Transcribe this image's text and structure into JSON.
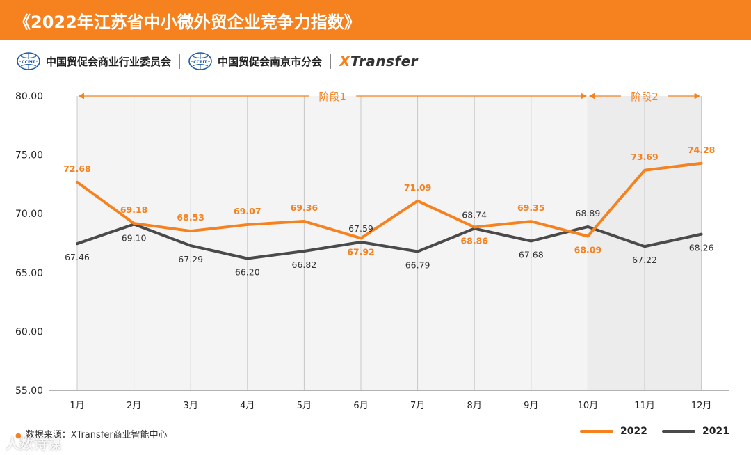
{
  "header": {
    "title": "《2022年江苏省中小微外贸企业竞争力指数》"
  },
  "logos": {
    "org1": "中国贸促会商业行业委员会",
    "org2": "中国贸促会南京市分会",
    "brand_x": "X",
    "brand_rest": "Transfer",
    "emblem_text": "CCPIT"
  },
  "source": "数据来源：XTransfer商业智能中心",
  "watermark": "人数诗谋",
  "colors": {
    "accent": "#f5821f",
    "series2021": "#4a4a4a",
    "stage_bg1": "#f4f4f4",
    "stage_bg2": "#ececec"
  },
  "chart_data": {
    "type": "line",
    "title": "2022年江苏省中小微外贸企业竞争力指数",
    "categories": [
      "1月",
      "2月",
      "3月",
      "4月",
      "5月",
      "6月",
      "7月",
      "8月",
      "9月",
      "10月",
      "11月",
      "12月"
    ],
    "series": [
      {
        "name": "2022",
        "values": [
          72.68,
          69.18,
          68.53,
          69.07,
          69.36,
          67.92,
          71.09,
          68.86,
          69.35,
          68.09,
          73.69,
          74.28
        ],
        "labels": [
          "72.68",
          "69.18",
          "68.53",
          "69.07",
          "69.36",
          "67.92",
          "71.09",
          "68.86",
          "69.35",
          "68.09",
          "73.69",
          "74.28"
        ],
        "label_pos": [
          "above",
          "above",
          "above",
          "above",
          "above",
          "below",
          "above",
          "below",
          "above",
          "below",
          "above",
          "above"
        ]
      },
      {
        "name": "2021",
        "values": [
          67.46,
          69.1,
          67.29,
          66.2,
          66.82,
          67.59,
          66.79,
          68.74,
          67.68,
          68.89,
          67.22,
          68.26
        ],
        "labels": [
          "67.46",
          "69.10",
          "67.29",
          "66.20",
          "66.82",
          "67.59",
          "66.79",
          "68.74",
          "67.68",
          "68.89",
          "67.22",
          "68.26"
        ],
        "label_pos": [
          "below",
          "below",
          "below",
          "below",
          "below",
          "above",
          "below",
          "above",
          "below",
          "above",
          "below",
          "below"
        ]
      }
    ],
    "ylim": [
      55,
      80
    ],
    "yticks": [
      80,
      75,
      70,
      65,
      60,
      55
    ],
    "ytick_labels": [
      "80.00",
      "75.00",
      "70.00",
      "65.00",
      "60.00",
      "55.00"
    ],
    "stages": [
      {
        "label": "阶段1",
        "from": "1月",
        "to": "10月"
      },
      {
        "label": "阶段2",
        "from": "10月",
        "to": "12月"
      }
    ],
    "legend_position": "bottom-right",
    "grid": "vertical"
  }
}
